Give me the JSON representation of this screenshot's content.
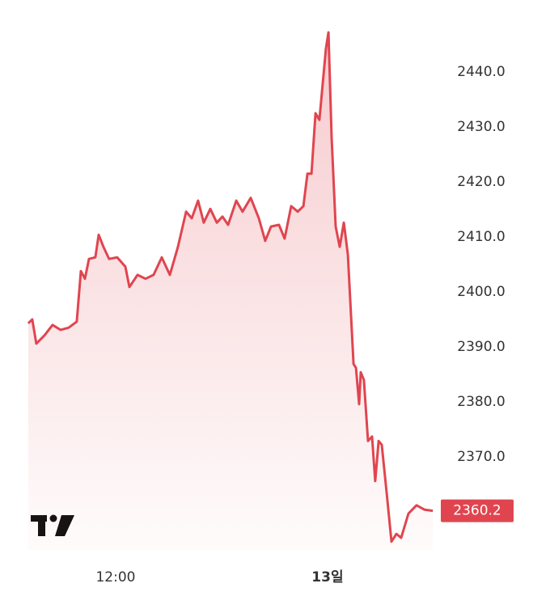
{
  "chart_data": {
    "type": "area",
    "x": [
      7.05,
      7.28,
      7.51,
      7.97,
      8.43,
      8.88,
      9.34,
      9.8,
      10.03,
      10.26,
      10.49,
      10.85,
      11.04,
      11.31,
      11.63,
      12.09,
      12.55,
      12.78,
      13.24,
      13.69,
      14.15,
      14.61,
      15.07,
      15.53,
      15.99,
      16.31,
      16.67,
      16.99,
      17.36,
      17.73,
      18.05,
      18.37,
      18.83,
      19.19,
      19.65,
      20.11,
      20.47,
      20.8,
      21.25,
      21.57,
      21.94,
      22.31,
      22.63,
      22.86,
      23.09,
      23.32,
      23.54,
      23.91,
      24.05,
      24.23,
      24.46,
      24.69,
      24.92,
      25.15,
      25.47,
      25.61,
      25.79,
      25.88,
      26.06,
      26.29,
      26.52,
      26.7,
      26.89,
      27.07,
      27.35,
      27.62,
      27.9,
      28.17,
      28.58,
      29.04,
      29.5,
      29.96
    ],
    "series": [
      {
        "color": "#e0454f",
        "values": [
          2394.3,
          2395.0,
          2390.6,
          2392.1,
          2394.0,
          2393.1,
          2393.5,
          2394.6,
          2403.8,
          2402.4,
          2406.0,
          2406.3,
          2410.4,
          2408.2,
          2406.0,
          2406.3,
          2404.6,
          2400.9,
          2403.1,
          2402.4,
          2403.1,
          2406.3,
          2403.1,
          2408.2,
          2414.6,
          2413.4,
          2416.6,
          2412.6,
          2415.1,
          2412.6,
          2413.7,
          2412.2,
          2416.6,
          2414.6,
          2417.1,
          2413.4,
          2409.3,
          2411.9,
          2412.2,
          2409.7,
          2415.6,
          2414.6,
          2415.6,
          2421.5,
          2421.5,
          2432.5,
          2431.3,
          2444.3,
          2447.2,
          2428.1,
          2411.9,
          2408.2,
          2412.6,
          2406.8,
          2386.9,
          2386.2,
          2379.6,
          2385.4,
          2384.0,
          2372.9,
          2373.7,
          2365.6,
          2372.9,
          2372.2,
          2363.4,
          2354.6,
          2356.0,
          2355.3,
          2359.7,
          2361.2,
          2360.4,
          2360.2
        ]
      }
    ],
    "last_price": 2360.2,
    "xlim": [
      7,
      31
    ],
    "xticks": [
      {
        "value": 12,
        "label": "12:00"
      },
      {
        "value": 24,
        "label": "13일"
      }
    ],
    "ylim": [
      2353,
      2452
    ],
    "yticks": [
      {
        "value": 2370,
        "label": "2370.0"
      },
      {
        "value": 2380,
        "label": "2380.0"
      },
      {
        "value": 2390,
        "label": "2390.0"
      },
      {
        "value": 2400,
        "label": "2400.0"
      },
      {
        "value": 2410,
        "label": "2410.0"
      },
      {
        "value": 2420,
        "label": "2420.0"
      },
      {
        "value": 2430,
        "label": "2430.0"
      },
      {
        "value": 2440,
        "label": "2440.0"
      }
    ]
  }
}
